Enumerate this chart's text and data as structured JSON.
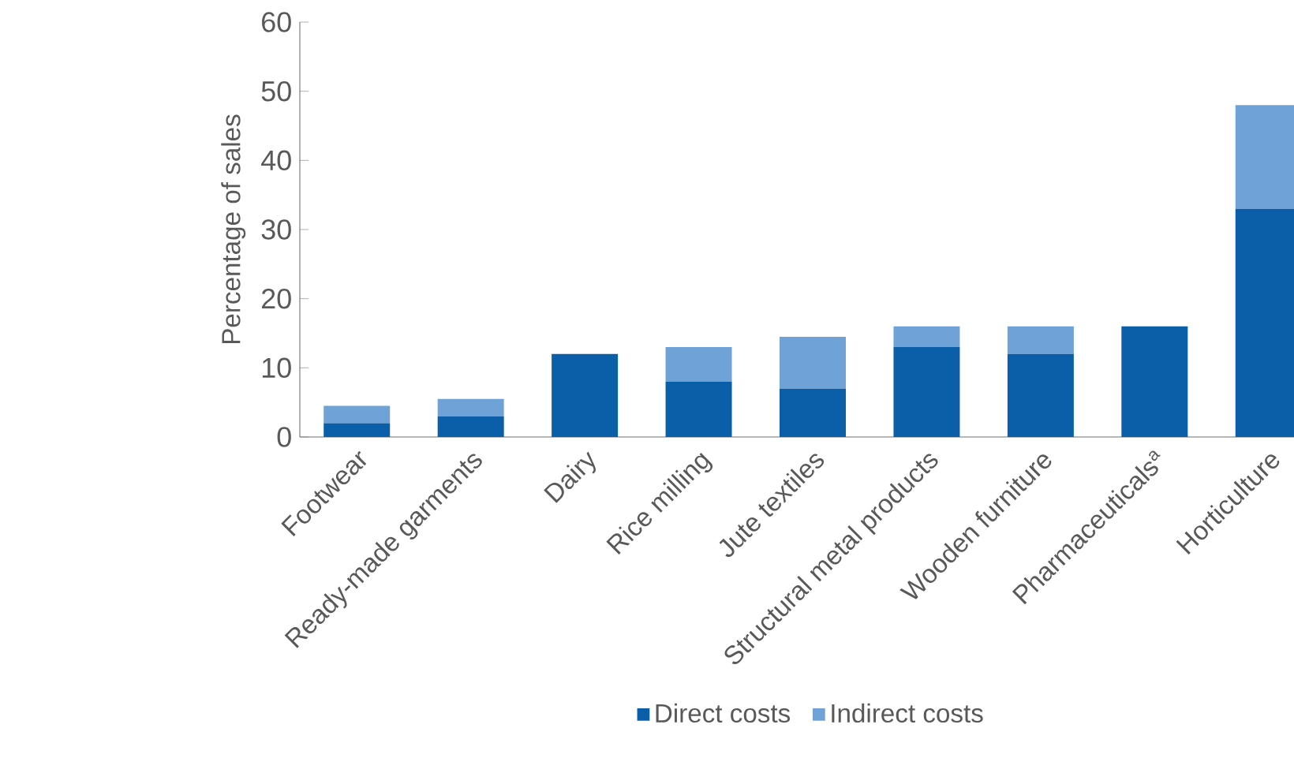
{
  "chart_data": {
    "type": "bar",
    "stacked": true,
    "ylabel": "Percentage of sales",
    "categories": [
      "Footwear",
      "Ready-made garments",
      "Dairy",
      "Rice milling",
      "Jute textiles",
      "Structural metal products",
      "Wooden furniture",
      "Pharmaceuticals$^{a}$",
      "Horticulture"
    ],
    "series": [
      {
        "name": "Direct costs",
        "color": "#0b5fa8",
        "values": [
          2,
          3,
          12,
          8,
          7,
          13,
          12,
          16,
          33
        ]
      },
      {
        "name": "Indirect costs",
        "color": "#6fa3d8",
        "values": [
          2.5,
          2.5,
          0,
          5,
          7.5,
          3,
          4,
          0,
          15
        ]
      }
    ],
    "ylim": [
      0,
      60
    ],
    "yticks": [
      0,
      10,
      20,
      30,
      40,
      50,
      60
    ],
    "grid": false,
    "legend": "bottom"
  }
}
